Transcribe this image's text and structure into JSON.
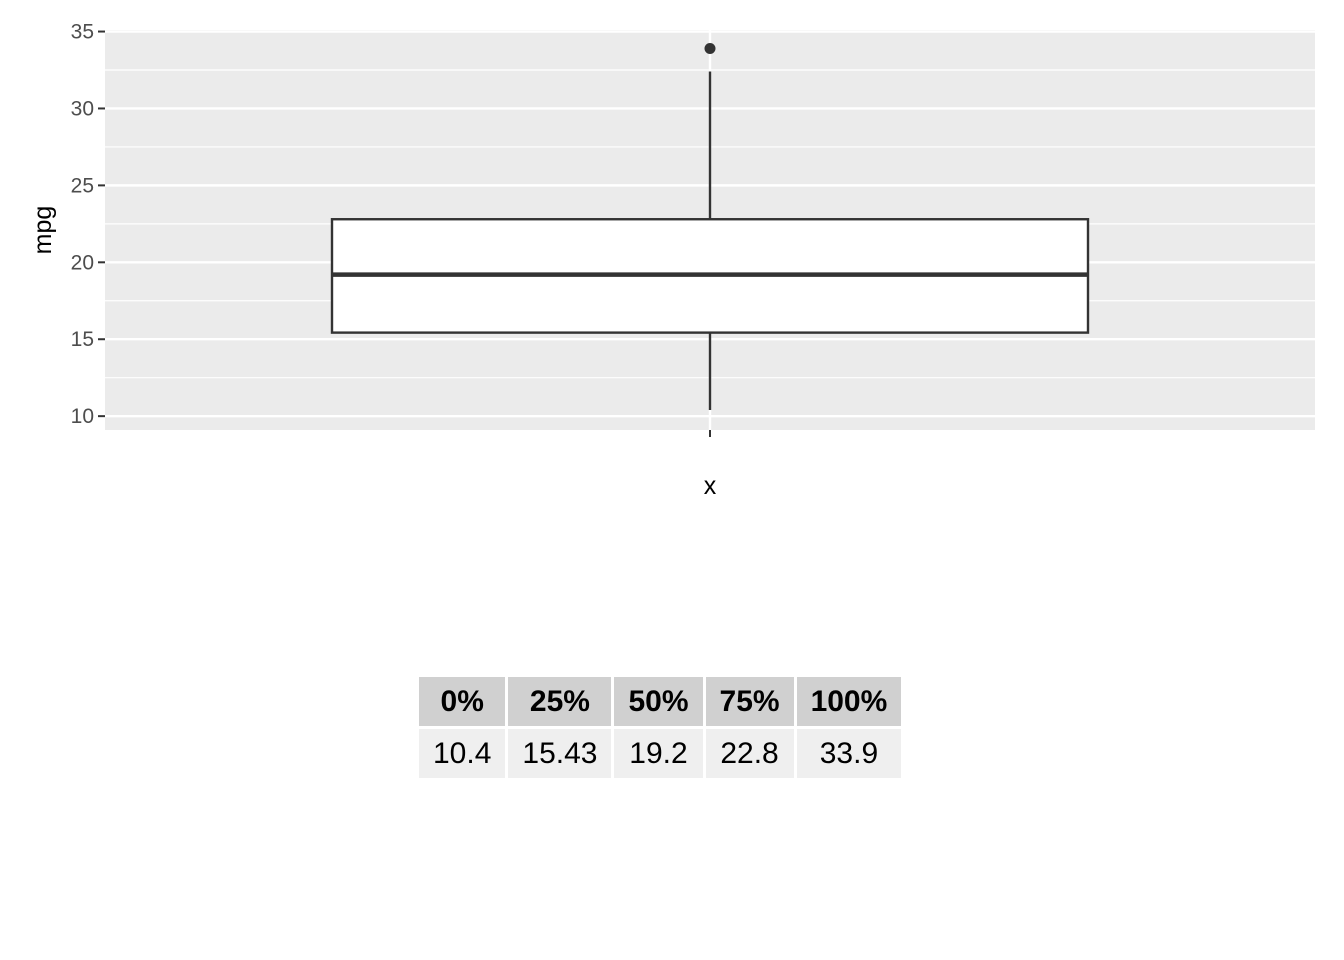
{
  "chart_data": {
    "type": "boxplot",
    "xlabel": "x",
    "ylabel": "mpg",
    "ylim": [
      9.1,
      35.1
    ],
    "yticks": [
      10,
      15,
      20,
      25,
      30,
      35
    ],
    "grid": true,
    "box": {
      "category": "",
      "lower_whisker": 10.4,
      "q1": 15.43,
      "median": 19.2,
      "q3": 22.8,
      "upper_whisker": 32.4,
      "outliers": [
        33.9
      ]
    }
  },
  "table": {
    "headers": [
      "0%",
      "25%",
      "50%",
      "75%",
      "100%"
    ],
    "values": [
      "10.4",
      "15.43",
      "19.2",
      "22.8",
      "33.9"
    ]
  },
  "colors": {
    "panel_background": "#ebebeb",
    "grid_line": "#ffffff",
    "box_fill": "#ffffff",
    "box_stroke": "#333333",
    "header_background": "#d0d0d0",
    "cell_background": "#efefef"
  }
}
